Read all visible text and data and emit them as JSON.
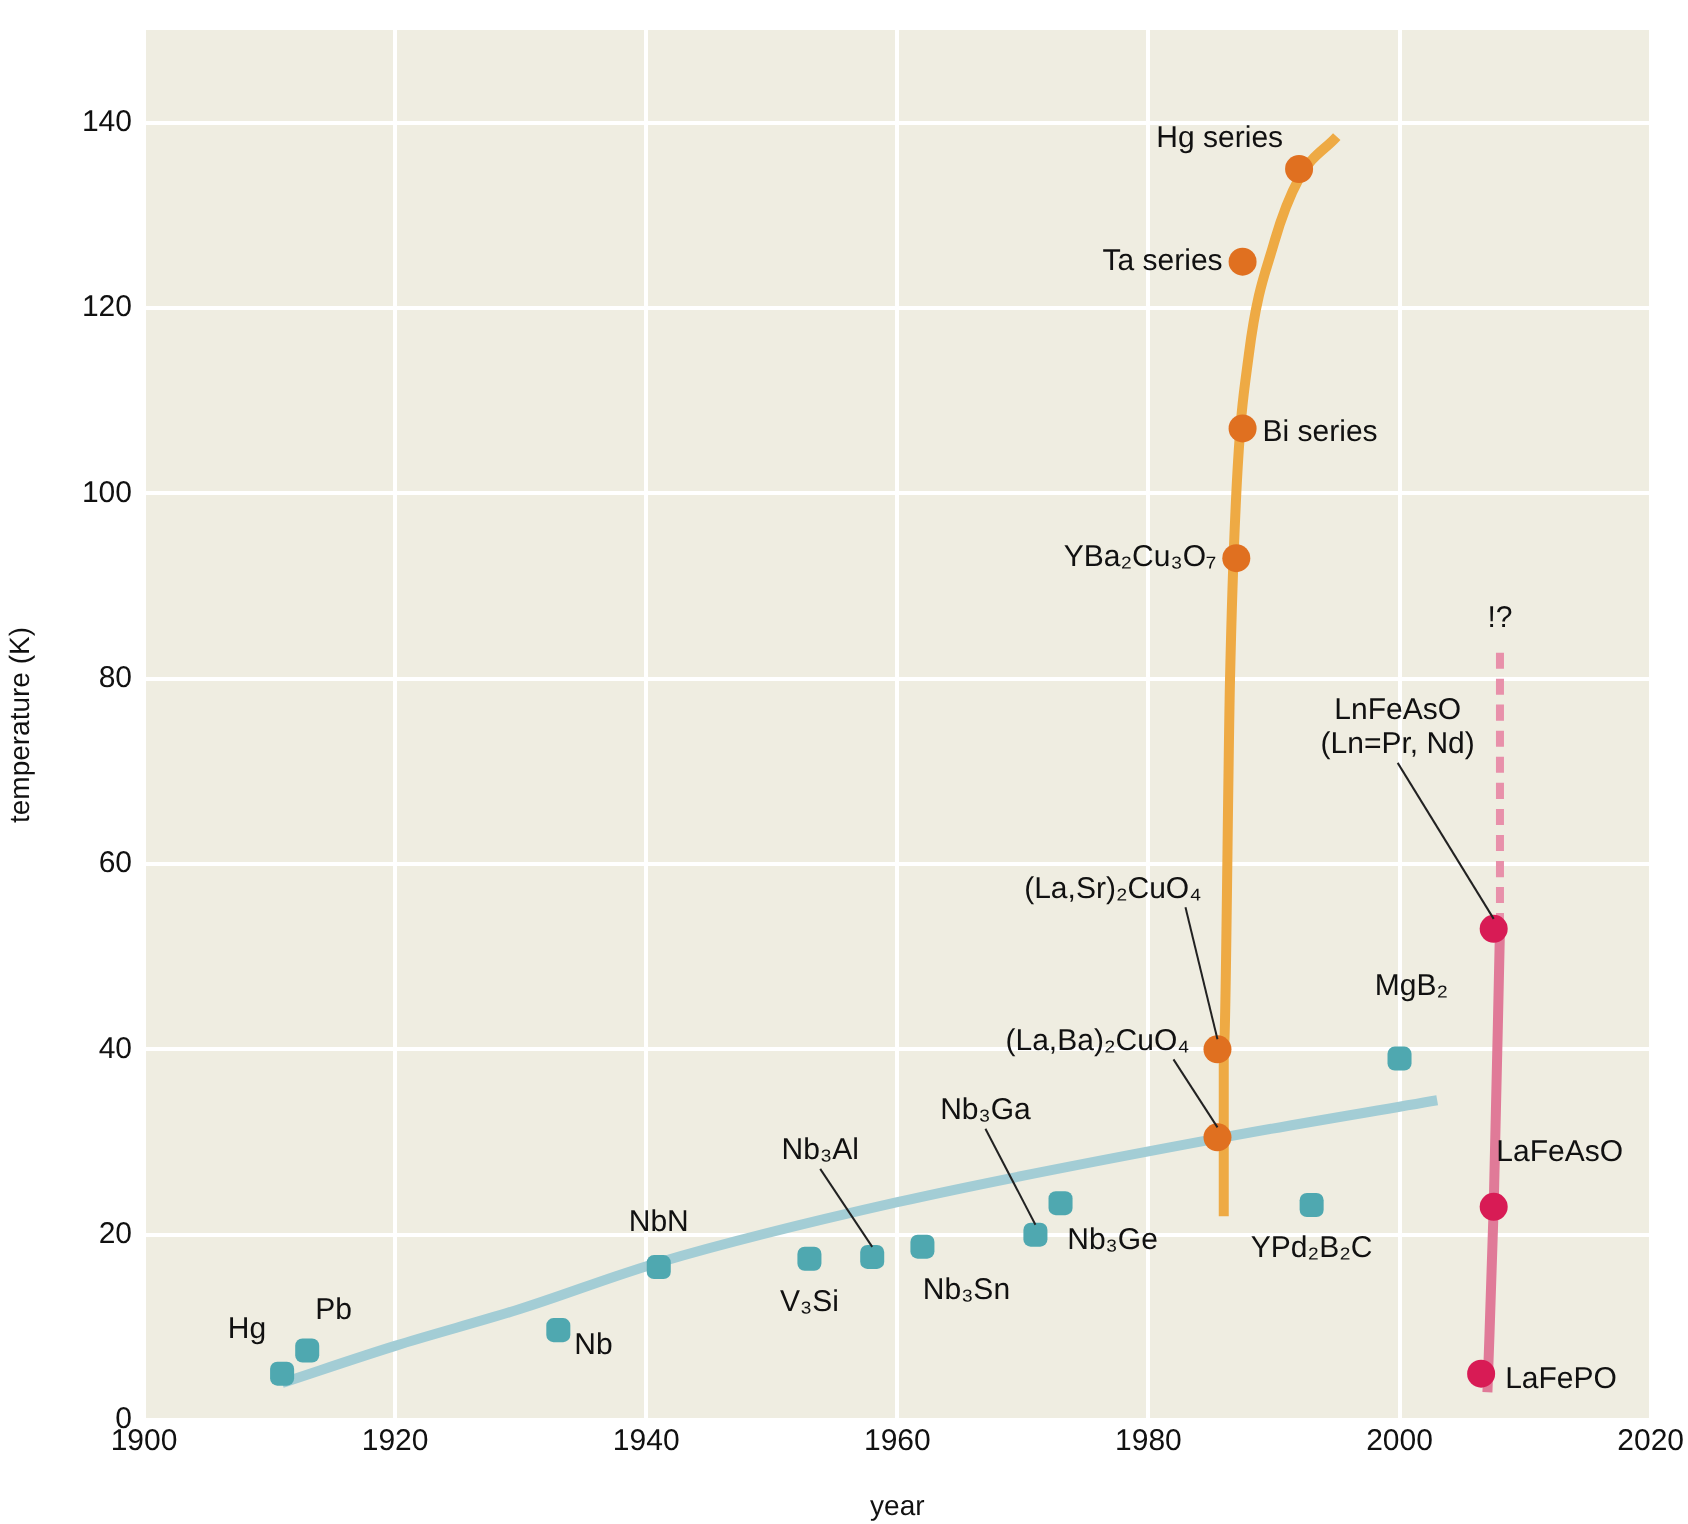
{
  "chart_data": {
    "type": "scatter",
    "xlabel": "year",
    "ylabel": "temperature (K)",
    "xlim": [
      1900,
      2020
    ],
    "xticks": [
      1900,
      1920,
      1940,
      1960,
      1980,
      2000,
      2020
    ],
    "ylim": [
      0,
      150
    ],
    "yticks": [
      0,
      20,
      40,
      60,
      80,
      100,
      120,
      140
    ],
    "grid": true,
    "legend": false,
    "series": [
      {
        "type": "line",
        "color": "#a3cdd5",
        "marker": "none",
        "line_style": "solid",
        "x": [
          1911,
          1920,
          1930,
          1941,
          1960,
          1986,
          2003
        ],
        "values": [
          4,
          8,
          12,
          17,
          23.5,
          30.5,
          34.5
        ]
      },
      {
        "type": "line",
        "color": "#eeaa44",
        "marker": "none",
        "line_style": "solid",
        "x": [
          1986,
          1986,
          1986.5,
          1987,
          1988,
          1990,
          1992,
          1995
        ],
        "values": [
          22,
          40,
          80,
          100,
          115,
          127,
          134,
          138.5
        ]
      },
      {
        "type": "line",
        "color": "#e07a98",
        "marker": "none",
        "line_style": "solid",
        "x": [
          2007,
          2007.5,
          2008
        ],
        "values": [
          3,
          23,
          53
        ]
      },
      {
        "type": "line",
        "color": "#e890aa",
        "marker": "none",
        "line_style": "dashed",
        "x": [
          2008,
          2008
        ],
        "values": [
          53,
          83
        ]
      },
      {
        "type": "scatter",
        "color": "#4fa8b0",
        "marker": "square",
        "x": [
          1911,
          1913,
          1933,
          1941,
          1953,
          1958,
          1962,
          1971,
          1973,
          1993,
          2000
        ],
        "values": [
          5,
          7.5,
          9.7,
          16.5,
          17.4,
          17.6,
          18.7,
          20,
          23.4,
          23.2,
          39
        ]
      },
      {
        "type": "scatter",
        "color": "#e07020",
        "marker": "circle",
        "x": [
          1985.5,
          1985.5,
          1987,
          1987.5,
          1987.5,
          1992
        ],
        "values": [
          30.5,
          40,
          93,
          107,
          125,
          135
        ]
      },
      {
        "type": "scatter",
        "color": "#d81b55",
        "marker": "circle",
        "x": [
          2006.5,
          2007.5,
          2007.5
        ],
        "values": [
          5,
          23,
          53
        ]
      }
    ],
    "annotations": [
      {
        "text": "Hg",
        "x": 1911,
        "y": 5
      },
      {
        "text": "Pb",
        "x": 1913,
        "y": 7.5
      },
      {
        "text": "Nb",
        "x": 1933,
        "y": 9.7
      },
      {
        "text": "NbN",
        "x": 1941,
        "y": 16.5
      },
      {
        "text": "V₃Si",
        "x": 1953,
        "y": 17.4
      },
      {
        "text": "Nb₃Al",
        "x": 1958,
        "y": 17.6
      },
      {
        "text": "Nb₃Sn",
        "x": 1962,
        "y": 18.7
      },
      {
        "text": "Nb₃Ga",
        "x": 1971,
        "y": 20
      },
      {
        "text": "Nb₃Ge",
        "x": 1973,
        "y": 23.4
      },
      {
        "text": "(La,Ba)₂CuO₄",
        "x": 1985.5,
        "y": 30.5
      },
      {
        "text": "(La,Sr)₂CuO₄",
        "x": 1985.5,
        "y": 40
      },
      {
        "text": "YBa₂Cu₃O₇",
        "x": 1987,
        "y": 93
      },
      {
        "text": "Bi series",
        "x": 1987.5,
        "y": 107
      },
      {
        "text": "Ta series",
        "x": 1987.5,
        "y": 125
      },
      {
        "text": "Hg series",
        "x": 1992,
        "y": 135
      },
      {
        "text": "MgB₂",
        "x": 2000,
        "y": 39
      },
      {
        "text": "YPd₂B₂C",
        "x": 1993,
        "y": 23.2
      },
      {
        "text": "LnFeAsO\n(Ln=Pr, Nd)",
        "x": 2007.5,
        "y": 53
      },
      {
        "text": "LaFeAsO",
        "x": 2007.5,
        "y": 23
      },
      {
        "text": "LaFePO",
        "x": 2006.5,
        "y": 5
      },
      "!?"
    ]
  }
}
